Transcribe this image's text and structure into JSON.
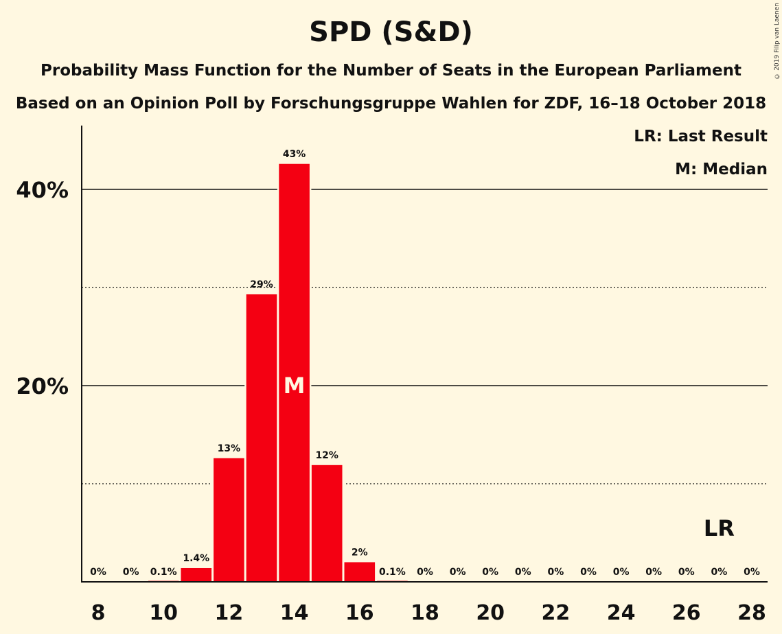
{
  "chart_data": {
    "type": "bar",
    "title": "SPD (S&D)",
    "subtitle": "Probability Mass Function for the Number of Seats in the European Parliament",
    "subtitle2": "Based on an Opinion Poll by Forschungsgruppe Wahlen for ZDF, 16–18 October 2018",
    "copyright": "© 2019 Filip van Laenen",
    "legend": {
      "last_result": "LR: Last Result",
      "median": "M: Median",
      "placement": "top-right"
    },
    "x": [
      8,
      9,
      10,
      11,
      12,
      13,
      14,
      15,
      16,
      17,
      18,
      19,
      20,
      21,
      22,
      23,
      24,
      25,
      26,
      27,
      28
    ],
    "values": [
      0,
      0,
      0.1,
      1.4,
      12.6,
      29.3,
      42.6,
      11.9,
      2.0,
      0.1,
      0,
      0,
      0,
      0,
      0,
      0,
      0,
      0,
      0,
      0,
      0
    ],
    "labels": [
      "0%",
      "0%",
      "0.1%",
      "1.4%",
      "13%",
      "29%",
      "43%",
      "12%",
      "2%",
      "0.1%",
      "0%",
      "0%",
      "0%",
      "0%",
      "0%",
      "0%",
      "0%",
      "0%",
      "0%",
      "0%",
      "0%"
    ],
    "x_tick_labels": [
      "8",
      "10",
      "12",
      "14",
      "16",
      "18",
      "20",
      "22",
      "24",
      "26",
      "28"
    ],
    "y_ticks": [
      20,
      40
    ],
    "y_tick_labels": [
      "20%",
      "40%"
    ],
    "ylim": [
      0,
      46.5
    ],
    "grid": {
      "solid": [
        20,
        40
      ],
      "dotted": [
        10,
        30
      ]
    },
    "median": {
      "x": 14,
      "label": "M"
    },
    "last_result": {
      "x": 27,
      "label": "LR"
    },
    "colors": {
      "bar": "#F40012",
      "background": "#FFF8E1",
      "axis": "#111111",
      "median_text": "#FFF8E1"
    }
  }
}
